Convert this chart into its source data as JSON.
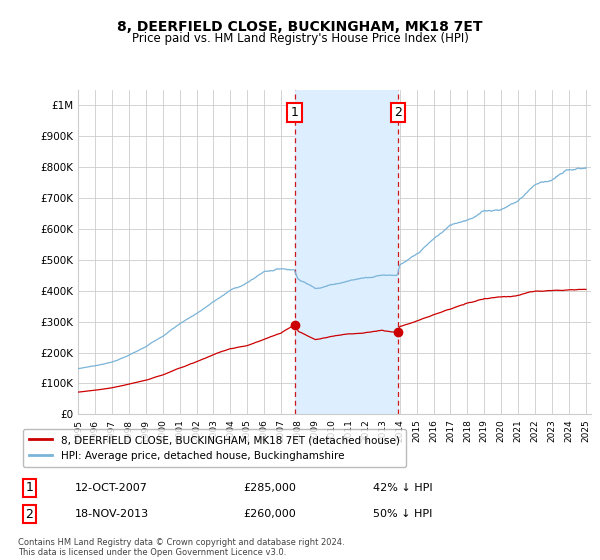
{
  "title": "8, DEERFIELD CLOSE, BUCKINGHAM, MK18 7ET",
  "subtitle": "Price paid vs. HM Land Registry's House Price Index (HPI)",
  "ylim": [
    0,
    1050000
  ],
  "yticks": [
    0,
    100000,
    200000,
    300000,
    400000,
    500000,
    600000,
    700000,
    800000,
    900000,
    1000000
  ],
  "ytick_labels": [
    "£0",
    "£100K",
    "£200K",
    "£300K",
    "£400K",
    "£500K",
    "£600K",
    "£700K",
    "£800K",
    "£900K",
    "£1M"
  ],
  "hpi_color": "#7ab4d8",
  "price_color": "#cc0000",
  "sale1_date": 2007.79,
  "sale1_price": 285000,
  "sale1_label": "1",
  "sale2_date": 2013.88,
  "sale2_price": 260000,
  "sale2_label": "2",
  "shaded_color": "#ddeeff",
  "legend_red_label": "8, DEERFIELD CLOSE, BUCKINGHAM, MK18 7ET (detached house)",
  "legend_blue_label": "HPI: Average price, detached house, Buckinghamshire",
  "footnote": "Contains HM Land Registry data © Crown copyright and database right 2024.\nThis data is licensed under the Open Government Licence v3.0.",
  "background_color": "#ffffff",
  "grid_color": "#cccccc",
  "hpi_pts_x": [
    1995,
    1996,
    1997,
    1998,
    1999,
    2000,
    2001,
    2002,
    2003,
    2004,
    2005,
    2006,
    2007,
    2007.79,
    2008,
    2009,
    2010,
    2011,
    2012,
    2013,
    2013.88,
    2014,
    2015,
    2016,
    2017,
    2018,
    2019,
    2020,
    2021,
    2022,
    2023,
    2024,
    2025
  ],
  "hpi_pts_y": [
    148000,
    158000,
    170000,
    192000,
    218000,
    255000,
    295000,
    330000,
    368000,
    405000,
    430000,
    468000,
    480000,
    478000,
    450000,
    420000,
    435000,
    450000,
    462000,
    475000,
    478000,
    510000,
    540000,
    590000,
    635000,
    660000,
    690000,
    700000,
    730000,
    790000,
    810000,
    840000,
    850000
  ],
  "price_pts_x": [
    1995,
    1996,
    1997,
    1998,
    1999,
    2000,
    2001,
    2002,
    2003,
    2004,
    2005,
    2006,
    2007,
    2007.79,
    2008,
    2009,
    2010,
    2011,
    2012,
    2013,
    2013.88,
    2014,
    2015,
    2016,
    2017,
    2018,
    2019,
    2020,
    2021,
    2022,
    2023,
    2024,
    2025
  ],
  "price_pts_y": [
    72000,
    78000,
    85000,
    96000,
    108000,
    125000,
    148000,
    168000,
    190000,
    210000,
    220000,
    240000,
    258000,
    285000,
    265000,
    238000,
    248000,
    258000,
    262000,
    268000,
    260000,
    278000,
    295000,
    318000,
    338000,
    355000,
    368000,
    375000,
    382000,
    395000,
    400000,
    405000,
    408000
  ]
}
